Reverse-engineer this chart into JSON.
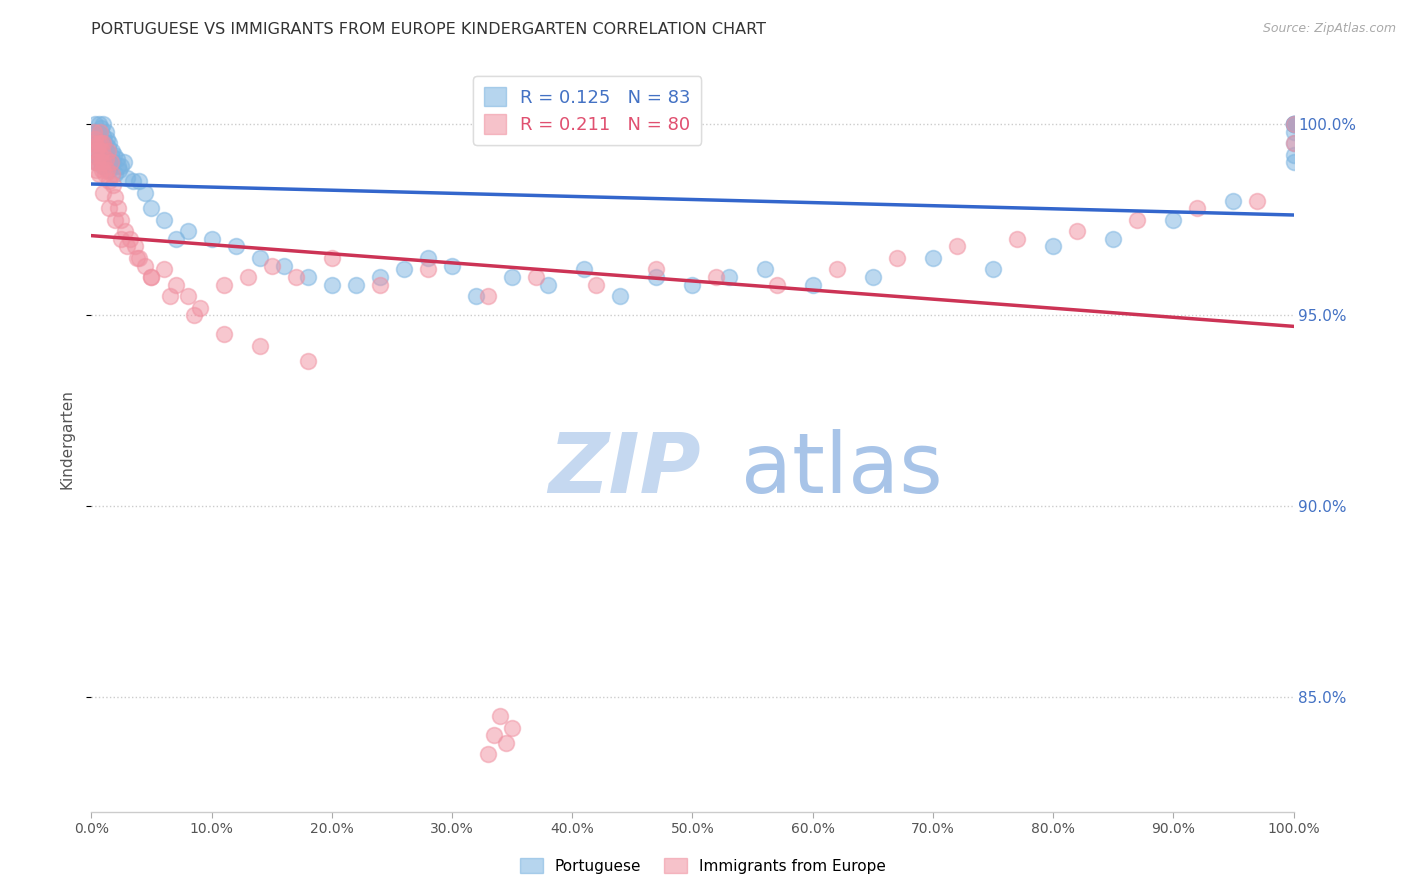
{
  "title": "PORTUGUESE VS IMMIGRANTS FROM EUROPE KINDERGARTEN CORRELATION CHART",
  "source": "Source: ZipAtlas.com",
  "ylabel": "Kindergarten",
  "xlim": [
    0.0,
    100.0
  ],
  "ylim": [
    82.0,
    101.5
  ],
  "yticks": [
    85.0,
    90.0,
    95.0,
    100.0
  ],
  "xticks": [
    0.0,
    10.0,
    20.0,
    30.0,
    40.0,
    50.0,
    60.0,
    70.0,
    80.0,
    90.0,
    100.0
  ],
  "grid_color": "#cccccc",
  "background_color": "#ffffff",
  "blue_color": "#7ab3e0",
  "pink_color": "#f090a0",
  "blue_line_color": "#3366cc",
  "pink_line_color": "#cc3355",
  "R_blue": 0.125,
  "N_blue": 83,
  "R_pink": 0.211,
  "N_pink": 80,
  "blue_x": [
    0.1,
    0.2,
    0.3,
    0.3,
    0.4,
    0.4,
    0.5,
    0.5,
    0.6,
    0.6,
    0.7,
    0.7,
    0.8,
    0.8,
    0.9,
    0.9,
    1.0,
    1.0,
    1.0,
    1.1,
    1.1,
    1.2,
    1.2,
    1.3,
    1.3,
    1.4,
    1.5,
    1.5,
    1.6,
    1.7,
    1.8,
    1.9,
    2.0,
    2.1,
    2.2,
    2.3,
    2.5,
    2.7,
    3.0,
    3.5,
    4.0,
    4.5,
    5.0,
    6.0,
    7.0,
    8.0,
    10.0,
    12.0,
    14.0,
    16.0,
    18.0,
    20.0,
    22.0,
    24.0,
    26.0,
    28.0,
    30.0,
    32.0,
    35.0,
    38.0,
    41.0,
    44.0,
    47.0,
    50.0,
    53.0,
    56.0,
    60.0,
    65.0,
    70.0,
    75.0,
    80.0,
    85.0,
    90.0,
    95.0,
    100.0,
    100.0,
    100.0,
    100.0,
    100.0,
    100.0,
    100.0,
    100.0,
    100.0
  ],
  "blue_y": [
    99.5,
    99.8,
    99.2,
    100.0,
    99.6,
    99.0,
    99.3,
    99.8,
    99.5,
    100.0,
    99.1,
    99.7,
    99.4,
    99.9,
    98.9,
    99.5,
    99.2,
    99.7,
    100.0,
    99.0,
    99.5,
    99.3,
    99.8,
    99.1,
    99.6,
    99.4,
    98.8,
    99.5,
    99.2,
    99.3,
    99.0,
    99.2,
    98.7,
    99.1,
    98.9,
    98.8,
    98.9,
    99.0,
    98.6,
    98.5,
    98.5,
    98.2,
    97.8,
    97.5,
    97.0,
    97.2,
    97.0,
    96.8,
    96.5,
    96.3,
    96.0,
    95.8,
    95.8,
    96.0,
    96.2,
    96.5,
    96.3,
    95.5,
    96.0,
    95.8,
    96.2,
    95.5,
    96.0,
    95.8,
    96.0,
    96.2,
    95.8,
    96.0,
    96.5,
    96.2,
    96.8,
    97.0,
    97.5,
    98.0,
    99.0,
    99.2,
    99.5,
    99.8,
    100.0,
    100.0,
    100.0,
    100.0,
    100.0
  ],
  "pink_x": [
    0.1,
    0.2,
    0.2,
    0.3,
    0.3,
    0.4,
    0.4,
    0.5,
    0.5,
    0.6,
    0.6,
    0.7,
    0.7,
    0.8,
    0.8,
    0.9,
    0.9,
    1.0,
    1.0,
    1.1,
    1.2,
    1.3,
    1.4,
    1.5,
    1.6,
    1.7,
    1.8,
    2.0,
    2.2,
    2.5,
    2.8,
    3.2,
    3.6,
    4.0,
    4.5,
    5.0,
    6.0,
    7.0,
    8.0,
    9.0,
    11.0,
    13.0,
    15.0,
    17.0,
    20.0,
    24.0,
    28.0,
    33.0,
    37.0,
    42.0,
    47.0,
    52.0,
    57.0,
    62.0,
    67.0,
    72.0,
    77.0,
    82.0,
    87.0,
    92.0,
    97.0,
    100.0,
    100.0,
    1.0,
    1.5,
    2.0,
    2.5,
    3.0,
    3.8,
    5.0,
    6.5,
    8.5,
    11.0,
    14.0,
    18.0,
    33.0,
    33.5,
    34.0,
    34.5,
    35.0
  ],
  "pink_y": [
    99.5,
    99.2,
    99.8,
    99.0,
    99.6,
    99.3,
    98.8,
    99.4,
    99.0,
    99.5,
    98.7,
    99.2,
    99.8,
    99.0,
    99.5,
    98.8,
    99.3,
    99.0,
    99.5,
    98.7,
    99.1,
    98.8,
    99.3,
    98.5,
    99.0,
    98.7,
    98.4,
    98.1,
    97.8,
    97.5,
    97.2,
    97.0,
    96.8,
    96.5,
    96.3,
    96.0,
    96.2,
    95.8,
    95.5,
    95.2,
    95.8,
    96.0,
    96.3,
    96.0,
    96.5,
    95.8,
    96.2,
    95.5,
    96.0,
    95.8,
    96.2,
    96.0,
    95.8,
    96.2,
    96.5,
    96.8,
    97.0,
    97.2,
    97.5,
    97.8,
    98.0,
    99.5,
    100.0,
    98.2,
    97.8,
    97.5,
    97.0,
    96.8,
    96.5,
    96.0,
    95.5,
    95.0,
    94.5,
    94.2,
    93.8,
    83.5,
    84.0,
    84.5,
    83.8,
    84.2
  ],
  "watermark_zip_color": "#c5d8f0",
  "watermark_atlas_color": "#a8c4e8",
  "legend_blue_label": "Portuguese",
  "legend_pink_label": "Immigrants from Europe",
  "right_tick_color": "#4472c4",
  "pink_legend_color": "#e05070"
}
